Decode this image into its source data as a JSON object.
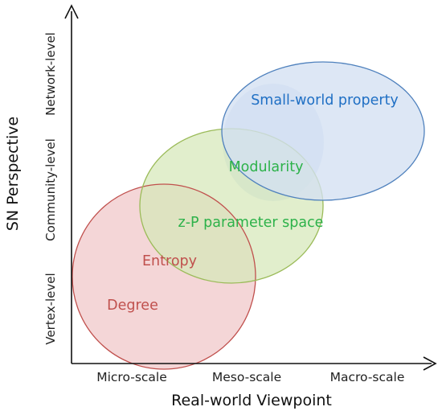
{
  "axes": {
    "x_title": "Real-world Viewpoint",
    "y_title": "SN Perspective",
    "x_ticks": [
      "Micro-scale",
      "Meso-scale",
      "Macro-scale"
    ],
    "y_ticks": [
      "Vertex-level",
      "Community-level",
      "Network-level"
    ]
  },
  "regions": {
    "vertex": {
      "labels": [
        "Entropy",
        "Degree"
      ],
      "fill": "#f2cfd0",
      "stroke": "#c0504d",
      "text_color": "#c0504d"
    },
    "community": {
      "labels": [
        "Modularity",
        "z-P parameter space"
      ],
      "fill": "#d6e7b8",
      "stroke": "#9bbb59",
      "text_color": "#2db24a"
    },
    "network": {
      "labels": [
        "Small-world property"
      ],
      "fill": "#d4e0f2",
      "stroke": "#4f81bd",
      "text_color": "#1f6fc4"
    }
  }
}
